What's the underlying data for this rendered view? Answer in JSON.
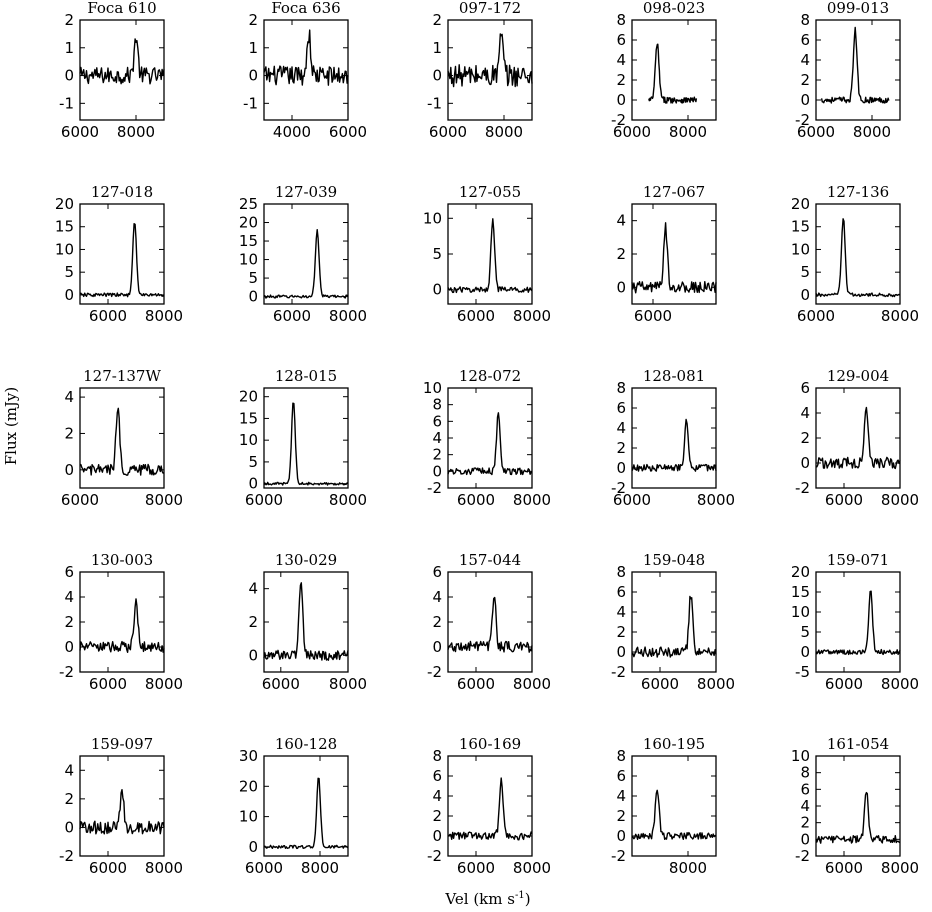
{
  "figure": {
    "ylabel": "Flux (mJy)",
    "xlabel": "Vel (km s",
    "xlabel_sup": "-1",
    "xlabel_close": ")"
  },
  "chart_data": [
    {
      "type": "line",
      "title": "Foca 610",
      "xlim": [
        6000,
        9000
      ],
      "ylim": [
        -1.6,
        2
      ],
      "xticks": [
        6000,
        8000
      ],
      "yticks": [
        -1,
        0,
        1,
        2
      ],
      "peak": 8000,
      "peak_value": 1.4,
      "noise": 0.3
    },
    {
      "type": "line",
      "title": "Foca 636",
      "xlim": [
        3000,
        6000
      ],
      "ylim": [
        -1.6,
        2
      ],
      "xticks": [
        4000,
        6000
      ],
      "yticks": [
        -1,
        0,
        1,
        2
      ],
      "peak": 4600,
      "peak_value": 1.5,
      "noise": 0.35
    },
    {
      "type": "line",
      "title": "097-172",
      "xlim": [
        6000,
        9000
      ],
      "ylim": [
        -1.6,
        2
      ],
      "xticks": [
        6000,
        8000
      ],
      "yticks": [
        -1,
        0,
        1,
        2
      ],
      "peak": 7900,
      "peak_value": 1.4,
      "noise": 0.4
    },
    {
      "type": "line",
      "title": "098-023",
      "xlim": [
        6000,
        9000
      ],
      "ylim": [
        -2,
        8
      ],
      "xticks": [
        6000,
        8000
      ],
      "yticks": [
        -2,
        0,
        2,
        4,
        6,
        8
      ],
      "peak": 6900,
      "peak_value": 5.6,
      "noise": 0.3,
      "data_xrange": [
        6600,
        8300
      ]
    },
    {
      "type": "line",
      "title": "099-013",
      "xlim": [
        6000,
        9000
      ],
      "ylim": [
        -2,
        8
      ],
      "xticks": [
        6000,
        8000
      ],
      "yticks": [
        -2,
        0,
        2,
        4,
        6,
        8
      ],
      "peak": 7400,
      "peak_value": 7.0,
      "noise": 0.3,
      "data_xrange": [
        6200,
        8600
      ]
    },
    {
      "type": "line",
      "title": "127-018",
      "xlim": [
        5000,
        8000
      ],
      "ylim": [
        -2,
        20
      ],
      "xticks": [
        6000,
        8000
      ],
      "yticks": [
        0,
        5,
        10,
        15,
        20
      ],
      "peak": 6950,
      "peak_value": 16,
      "noise": 0.4
    },
    {
      "type": "line",
      "title": "127-039",
      "xlim": [
        5000,
        8000
      ],
      "ylim": [
        -2,
        25
      ],
      "xticks": [
        6000,
        8000
      ],
      "yticks": [
        0,
        5,
        10,
        15,
        20,
        25
      ],
      "peak": 6900,
      "peak_value": 18,
      "noise": 0.4
    },
    {
      "type": "line",
      "title": "127-055",
      "xlim": [
        5000,
        8000
      ],
      "ylim": [
        -2,
        12
      ],
      "xticks": [
        6000,
        8000
      ],
      "yticks": [
        0,
        5,
        10
      ],
      "peak": 6600,
      "peak_value": 10,
      "noise": 0.4
    },
    {
      "type": "line",
      "title": "127-067",
      "xlim": [
        5500,
        7500
      ],
      "ylim": [
        -1,
        5
      ],
      "xticks": [
        6000
      ],
      "yticks": [
        0,
        2,
        4
      ],
      "peak": 6300,
      "peak_value": 3.6,
      "noise": 0.35
    },
    {
      "type": "line",
      "title": "127-136",
      "xlim": [
        6000,
        8000
      ],
      "ylim": [
        -2,
        20
      ],
      "xticks": [
        6000,
        8000
      ],
      "yticks": [
        0,
        5,
        10,
        15,
        20
      ],
      "peak": 6650,
      "peak_value": 17,
      "noise": 0.4
    },
    {
      "type": "line",
      "title": "127-137W",
      "xlim": [
        6000,
        8000
      ],
      "ylim": [
        -1,
        4.5
      ],
      "xticks": [
        6000,
        8000
      ],
      "yticks": [
        0,
        2,
        4
      ],
      "peak": 6900,
      "peak_value": 3.4,
      "noise": 0.3
    },
    {
      "type": "line",
      "title": "128-015",
      "xlim": [
        6000,
        8000
      ],
      "ylim": [
        -1,
        22
      ],
      "xticks": [
        6000,
        8000
      ],
      "yticks": [
        0,
        5,
        10,
        15,
        20
      ],
      "peak": 6700,
      "peak_value": 19,
      "noise": 0.3
    },
    {
      "type": "line",
      "title": "128-072",
      "xlim": [
        5000,
        8000
      ],
      "ylim": [
        -2,
        10
      ],
      "xticks": [
        6000,
        8000
      ],
      "yticks": [
        -2,
        0,
        2,
        4,
        6,
        8,
        10
      ],
      "peak": 6800,
      "peak_value": 7,
      "noise": 0.4
    },
    {
      "type": "line",
      "title": "128-081",
      "xlim": [
        6000,
        8000
      ],
      "ylim": [
        -2,
        8
      ],
      "xticks": [
        6000,
        8000
      ],
      "yticks": [
        -2,
        0,
        2,
        4,
        6,
        8
      ],
      "peak": 7300,
      "peak_value": 4.8,
      "noise": 0.35
    },
    {
      "type": "line",
      "title": "129-004",
      "xlim": [
        5000,
        8000
      ],
      "ylim": [
        -2,
        6
      ],
      "xticks": [
        6000,
        8000
      ],
      "yticks": [
        -2,
        0,
        2,
        4,
        6
      ],
      "peak": 6800,
      "peak_value": 4.6,
      "noise": 0.45
    },
    {
      "type": "line",
      "title": "130-003",
      "xlim": [
        5000,
        8000
      ],
      "ylim": [
        -2,
        6
      ],
      "xticks": [
        6000,
        8000
      ],
      "yticks": [
        -2,
        0,
        2,
        4,
        6
      ],
      "peak": 7000,
      "peak_value": 3.8,
      "noise": 0.45
    },
    {
      "type": "line",
      "title": "130-029",
      "xlim": [
        5500,
        8000
      ],
      "ylim": [
        -1,
        5
      ],
      "xticks": [
        6000,
        8000
      ],
      "yticks": [
        0,
        2,
        4
      ],
      "peak": 6600,
      "peak_value": 4.4,
      "noise": 0.3
    },
    {
      "type": "line",
      "title": "157-044",
      "xlim": [
        5000,
        8000
      ],
      "ylim": [
        -2,
        6
      ],
      "xticks": [
        6000,
        8000
      ],
      "yticks": [
        -2,
        0,
        2,
        4,
        6
      ],
      "peak": 6650,
      "peak_value": 4.0,
      "noise": 0.45
    },
    {
      "type": "line",
      "title": "159-048",
      "xlim": [
        5000,
        8000
      ],
      "ylim": [
        -2,
        8
      ],
      "xticks": [
        6000,
        8000
      ],
      "yticks": [
        -2,
        0,
        2,
        4,
        6,
        8
      ],
      "peak": 7100,
      "peak_value": 5.8,
      "noise": 0.5
    },
    {
      "type": "line",
      "title": "159-071",
      "xlim": [
        5000,
        8000
      ],
      "ylim": [
        -5,
        20
      ],
      "xticks": [
        6000,
        8000
      ],
      "yticks": [
        -5,
        0,
        5,
        10,
        15,
        20
      ],
      "peak": 6950,
      "peak_value": 15.5,
      "noise": 0.6
    },
    {
      "type": "line",
      "title": "159-097",
      "xlim": [
        5000,
        8000
      ],
      "ylim": [
        -2,
        5
      ],
      "xticks": [
        6000,
        8000
      ],
      "yticks": [
        -2,
        0,
        2,
        4
      ],
      "peak": 6500,
      "peak_value": 2.6,
      "noise": 0.45
    },
    {
      "type": "line",
      "title": "160-128",
      "xlim": [
        6000,
        9000
      ],
      "ylim": [
        -3,
        30
      ],
      "xticks": [
        6000,
        8000
      ],
      "yticks": [
        0,
        10,
        20,
        30
      ],
      "peak": 7950,
      "peak_value": 23,
      "noise": 0.5
    },
    {
      "type": "line",
      "title": "160-169",
      "xlim": [
        5000,
        8000
      ],
      "ylim": [
        -2,
        8
      ],
      "xticks": [
        6000,
        8000
      ],
      "yticks": [
        -2,
        0,
        2,
        4,
        6,
        8
      ],
      "peak": 6900,
      "peak_value": 5.6,
      "noise": 0.4
    },
    {
      "type": "line",
      "title": "160-195",
      "xlim": [
        6000,
        9000
      ],
      "ylim": [
        -2,
        8
      ],
      "xticks": [
        8000
      ],
      "yticks": [
        -2,
        0,
        2,
        4,
        6,
        8
      ],
      "peak": 6900,
      "peak_value": 4.9,
      "noise": 0.35
    },
    {
      "type": "line",
      "title": "161-054",
      "xlim": [
        5000,
        8000
      ],
      "ylim": [
        -2,
        10
      ],
      "xticks": [
        6000,
        8000
      ],
      "yticks": [
        -2,
        0,
        2,
        4,
        6,
        8,
        10
      ],
      "peak": 6800,
      "peak_value": 5.8,
      "noise": 0.45
    }
  ]
}
